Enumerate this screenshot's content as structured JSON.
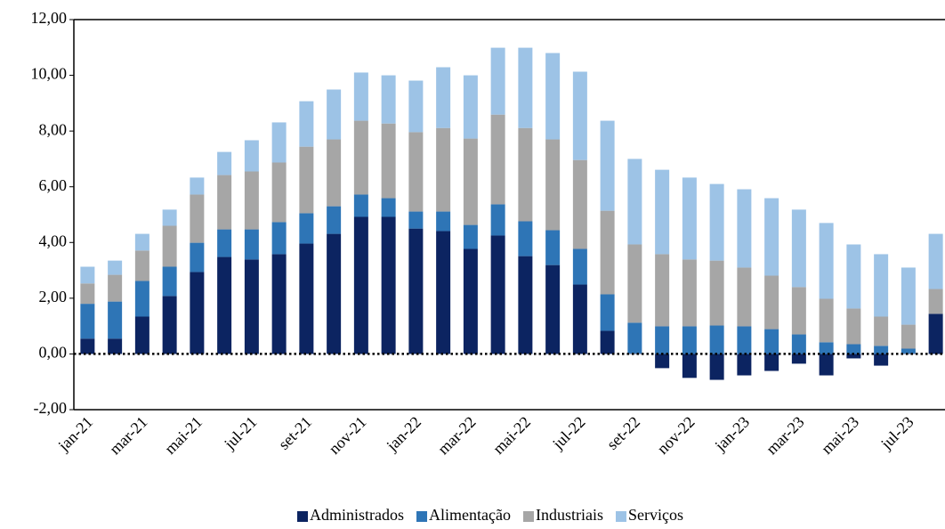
{
  "chart_data": {
    "type": "stacked-bar",
    "categories": [
      "jan-21",
      null,
      "mar-21",
      null,
      "mai-21",
      null,
      "jul-21",
      null,
      "set-21",
      null,
      "nov-21",
      null,
      "jan-22",
      null,
      "mar-22",
      null,
      "mai-22",
      null,
      "jul-22",
      null,
      "set-22",
      null,
      "nov-22",
      null,
      "jan-23",
      null,
      "mar-23",
      null,
      "mai-23",
      null,
      "jul-23",
      null
    ],
    "series": [
      {
        "name": "Administrados",
        "color": "#0c2461",
        "values": [
          0.55,
          0.55,
          1.34,
          2.08,
          2.94,
          3.48,
          3.39,
          3.58,
          3.96,
          4.31,
          4.92,
          4.92,
          4.5,
          4.41,
          3.77,
          4.25,
          3.51,
          3.19,
          2.49,
          0.83,
          0.02,
          -0.51,
          -0.86,
          -0.93,
          -0.77,
          -0.61,
          -0.35,
          -0.77,
          -0.16,
          -0.42,
          0.02,
          1.44
        ]
      },
      {
        "name": "Alimentação",
        "color": "#2e75b6",
        "values": [
          1.25,
          1.33,
          1.28,
          1.05,
          1.05,
          0.99,
          1.08,
          1.15,
          1.09,
          0.99,
          0.8,
          0.67,
          0.61,
          0.7,
          0.86,
          1.12,
          1.25,
          1.25,
          1.28,
          1.31,
          1.1,
          0.99,
          0.99,
          1.02,
          0.99,
          0.89,
          0.7,
          0.42,
          0.35,
          0.29,
          0.17,
          0.0
        ]
      },
      {
        "name": "Industriais",
        "color": "#a6a6a6",
        "values": [
          0.73,
          0.96,
          1.09,
          1.47,
          1.73,
          1.95,
          2.08,
          2.14,
          2.39,
          2.4,
          2.65,
          2.68,
          2.85,
          3.0,
          3.1,
          3.22,
          3.35,
          3.26,
          3.19,
          3.0,
          2.81,
          2.59,
          2.4,
          2.33,
          2.11,
          1.92,
          1.7,
          1.56,
          1.28,
          1.05,
          0.86,
          0.89
        ]
      },
      {
        "name": "Serviços",
        "color": "#9dc3e6",
        "values": [
          0.6,
          0.51,
          0.6,
          0.58,
          0.61,
          0.83,
          1.12,
          1.44,
          1.63,
          1.79,
          1.73,
          1.73,
          1.85,
          2.18,
          2.27,
          2.4,
          2.88,
          3.1,
          3.17,
          3.23,
          3.07,
          3.03,
          2.94,
          2.75,
          2.81,
          2.78,
          2.78,
          2.72,
          2.3,
          2.24,
          2.05,
          1.98
        ]
      }
    ],
    "ylim": [
      -2,
      12
    ],
    "yticks": [
      {
        "value": -2,
        "label": "-2,00"
      },
      {
        "value": 0,
        "label": "0,00"
      },
      {
        "value": 2,
        "label": "2,00"
      },
      {
        "value": 4,
        "label": "4,00"
      },
      {
        "value": 6,
        "label": "6,00"
      },
      {
        "value": 8,
        "label": "8,00"
      },
      {
        "value": 10,
        "label": "10,00"
      },
      {
        "value": 12,
        "label": "12,00"
      }
    ],
    "grid": false,
    "legend": "bottom"
  }
}
